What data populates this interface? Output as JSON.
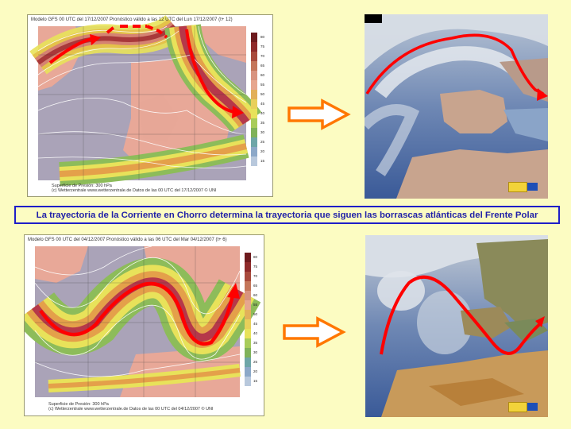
{
  "caption": "La trayectoria de la Corriente en Chorro determina la trayectoria que siguen las borrascas atlánticas del Frente Polar",
  "colors": {
    "background": "#fcfcc2",
    "caption_border": "#1e1ec8",
    "caption_text": "#1f1fa8",
    "jet_arrow": "#ff0000",
    "flow_arrow": "#ff7700"
  },
  "top_map": {
    "header": "Modelo GFS 00 UTC del 17/12/2007 Pronóstico válido a las 12 UTC del Lun 17/12/2007 (t+ 12)",
    "footer1": "Superficie de Presión: 300 hPa",
    "footer2": "(c) Wetterzentrale www.wetterzentrale.de   Datos de las 00 UTC del 17/12/2007   © UNI",
    "scale_labels": [
      "80",
      "75",
      "70",
      "65",
      "60",
      "55",
      "50",
      "45",
      "40",
      "35",
      "30",
      "25",
      "20",
      "15"
    ]
  },
  "bottom_map": {
    "header": "Modelo GFS 00 UTC del 04/12/2007 Pronóstico válido a las 06 UTC del Mar 04/12/2007 (t+ 6)",
    "footer1": "Superficie de Presión: 300 hPa",
    "footer2": "(c) Wetterzentrale www.wetterzentrale.de   Datos de las 00 UTC del 04/12/2007   © UNI",
    "scale_labels": [
      "80",
      "75",
      "70",
      "65",
      "60",
      "55",
      "50",
      "45",
      "40",
      "35",
      "30",
      "25",
      "20",
      "15"
    ]
  },
  "icons": {
    "flow_arrow": "orange-outline-right-arrow",
    "logo": "aemet-logo"
  }
}
